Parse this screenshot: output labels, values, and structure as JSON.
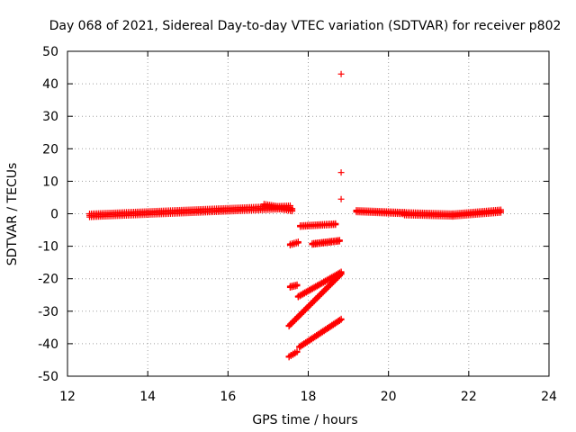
{
  "chart_data": {
    "type": "scatter",
    "title": "Day 068 of 2021, Sidereal Day-to-day VTEC variation (SDTVAR) for receiver p802",
    "xlabel": "GPS time / hours",
    "ylabel": "SDTVAR / TECUs",
    "xlim": [
      12,
      24
    ],
    "ylim": [
      -50,
      50
    ],
    "xticks": [
      12,
      14,
      16,
      18,
      20,
      22,
      24
    ],
    "yticks": [
      -50,
      -40,
      -30,
      -20,
      -10,
      0,
      10,
      20,
      30,
      40,
      50
    ],
    "grid": true,
    "marker": "plus",
    "color": "#ff0000",
    "segments": [
      {
        "x0": 12.55,
        "y0": -0.5,
        "x1": 17.55,
        "y1": 2.0,
        "n": 110,
        "band": 1.0
      },
      {
        "x0": 16.9,
        "y0": 2.6,
        "x1": 17.6,
        "y1": 1.2,
        "n": 16,
        "band": 0.8
      },
      {
        "x0": 17.55,
        "y0": -9.5,
        "x1": 17.75,
        "y1": -8.8,
        "n": 5,
        "band": 0.4
      },
      {
        "x0": 17.55,
        "y0": -22.5,
        "x1": 17.72,
        "y1": -22.0,
        "n": 5,
        "band": 0.4
      },
      {
        "x0": 17.52,
        "y0": -34.5,
        "x1": 18.82,
        "y1": -18.5,
        "n": 36,
        "band": 0.3
      },
      {
        "x0": 17.75,
        "y0": -25.5,
        "x1": 18.82,
        "y1": -18.0,
        "n": 28,
        "band": 0.3
      },
      {
        "x0": 17.52,
        "y0": -44.0,
        "x1": 17.72,
        "y1": -42.5,
        "n": 5,
        "band": 0.3
      },
      {
        "x0": 17.78,
        "y0": -41.0,
        "x1": 18.82,
        "y1": -32.5,
        "n": 28,
        "band": 0.3
      },
      {
        "x0": 17.8,
        "y0": -3.8,
        "x1": 18.68,
        "y1": -3.2,
        "n": 20,
        "band": 0.4
      },
      {
        "x0": 18.1,
        "y0": -9.3,
        "x1": 18.78,
        "y1": -8.3,
        "n": 18,
        "band": 0.4
      },
      {
        "x0": 19.2,
        "y0": 0.8,
        "x1": 20.4,
        "y1": 0.2,
        "n": 28,
        "band": 0.6
      },
      {
        "x0": 20.4,
        "y0": 0.0,
        "x1": 21.6,
        "y1": -0.4,
        "n": 28,
        "band": 0.9
      },
      {
        "x0": 21.6,
        "y0": -0.4,
        "x1": 22.8,
        "y1": 0.8,
        "n": 28,
        "band": 0.9
      }
    ],
    "points": [
      {
        "x": 18.82,
        "y": 43.0
      },
      {
        "x": 18.82,
        "y": 12.7
      },
      {
        "x": 18.82,
        "y": 4.5
      }
    ]
  }
}
